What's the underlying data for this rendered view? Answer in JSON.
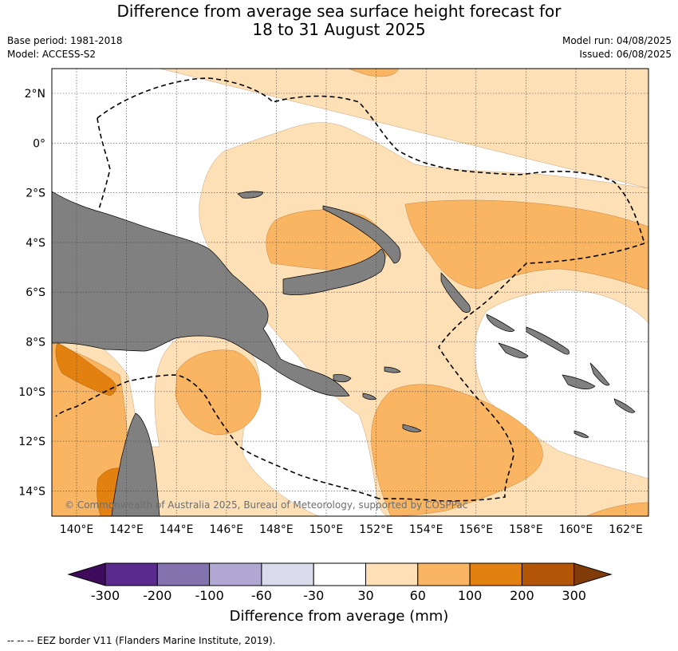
{
  "title_line1": "Difference from average sea surface height forecast for",
  "title_line2": "18 to 31 August 2025",
  "meta_left": {
    "base_period": "Base period: 1981-2018",
    "model": "Model: ACCESS-S2"
  },
  "meta_right": {
    "model_run": "Model run: 04/08/2025",
    "issued": "Issued: 06/08/2025"
  },
  "latitude_labels": [
    "2°N",
    "0°",
    "2°S",
    "4°S",
    "6°S",
    "8°S",
    "10°S",
    "12°S",
    "14°S"
  ],
  "longitude_labels": [
    "140°E",
    "142°E",
    "144°E",
    "146°E",
    "148°E",
    "150°E",
    "152°E",
    "154°E",
    "156°E",
    "158°E",
    "160°E",
    "162°E"
  ],
  "credit": "© Commonwealth of Australia 2025, Bureau of Meteorology, supported by COSPPac",
  "colorbar": {
    "ticks": [
      "-300",
      "-200",
      "-100",
      "-60",
      "-30",
      "30",
      "60",
      "100",
      "200",
      "300"
    ],
    "colors": [
      "#3f0b5c",
      "#5b2a8e",
      "#8272ae",
      "#b0a8d2",
      "#d9dbea",
      "#ffffff",
      "#fde0b6",
      "#fab563",
      "#e2810f",
      "#b35506",
      "#7f3b08"
    ],
    "title": "Difference from average (mm)"
  },
  "land_color": "#808080",
  "footer": "-- -- -- EEZ border V11 (Flanders Marine Institute, 2019)."
}
